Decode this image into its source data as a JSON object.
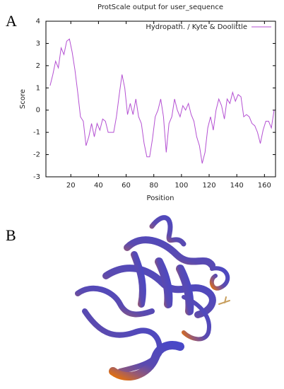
{
  "panel_labels": [
    "A",
    "B"
  ],
  "chart_data": {
    "type": "line",
    "title": "ProtScale output for user_sequence",
    "x_label": "Position",
    "y_label": "Score",
    "x": [
      5,
      7,
      9,
      11,
      13,
      15,
      17,
      19,
      21,
      23,
      25,
      27,
      29,
      31,
      33,
      35,
      37,
      39,
      41,
      43,
      45,
      47,
      49,
      51,
      53,
      55,
      57,
      59,
      61,
      63,
      65,
      67,
      69,
      71,
      73,
      75,
      77,
      79,
      81,
      83,
      85,
      87,
      89,
      91,
      93,
      95,
      97,
      99,
      101,
      103,
      105,
      107,
      109,
      111,
      113,
      115,
      117,
      119,
      121,
      123,
      125,
      127,
      129,
      131,
      133,
      135,
      137,
      139,
      141,
      143,
      145,
      147,
      149,
      151,
      153,
      155,
      157,
      159,
      161,
      163,
      165,
      167
    ],
    "series": [
      {
        "name": "Hydropath. / Kyte & Doolittle",
        "color": "#b450d2",
        "values": [
          1.1,
          1.6,
          2.2,
          1.9,
          2.8,
          2.5,
          3.1,
          3.2,
          2.6,
          1.8,
          0.8,
          -0.3,
          -0.5,
          -1.6,
          -1.2,
          -0.6,
          -1.2,
          -0.6,
          -0.9,
          -0.4,
          -0.5,
          -1.0,
          -1.0,
          -1.0,
          -0.3,
          0.7,
          1.6,
          1.0,
          -0.2,
          0.3,
          -0.2,
          0.5,
          -0.3,
          -0.6,
          -1.5,
          -2.1,
          -2.1,
          -1.3,
          -0.3,
          0.0,
          0.5,
          -0.3,
          -1.9,
          -0.6,
          -0.3,
          0.5,
          0.0,
          -0.3,
          0.2,
          0.0,
          0.3,
          -0.2,
          -0.5,
          -1.2,
          -1.6,
          -2.4,
          -1.9,
          -0.8,
          -0.3,
          -0.9,
          0.0,
          0.5,
          0.2,
          -0.4,
          0.5,
          0.3,
          0.8,
          0.4,
          0.7,
          0.6,
          -0.3,
          -0.2,
          -0.3,
          -0.6,
          -0.7,
          -1.0,
          -1.5,
          -0.9,
          -0.5,
          -0.5,
          -0.8,
          0.0
        ]
      }
    ],
    "xlim": [
      2,
      168
    ],
    "xticks": [
      20,
      40,
      60,
      80,
      100,
      120,
      140,
      160
    ],
    "ylim": [
      -3,
      4
    ],
    "yticks": [
      -3,
      -2,
      -1,
      0,
      1,
      2,
      3,
      4
    ],
    "legend": "top-right"
  }
}
